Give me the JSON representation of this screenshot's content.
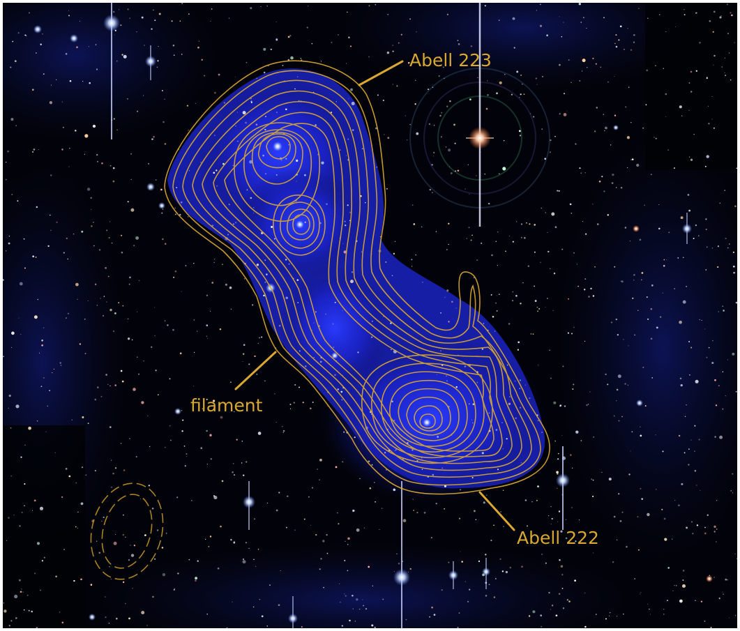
{
  "image": {
    "subject": "Galaxy clusters Abell 222 and Abell 223 connected by a dark matter filament, shown with yellow mass-density contours over a star field"
  },
  "annotations": {
    "abell_223": "Abell 223",
    "filament": "filament",
    "abell_222": "Abell 222"
  },
  "colors": {
    "contour": "#d9a832",
    "label": "#d9a832",
    "background": "#02030a",
    "glow": "#1a22c8"
  }
}
